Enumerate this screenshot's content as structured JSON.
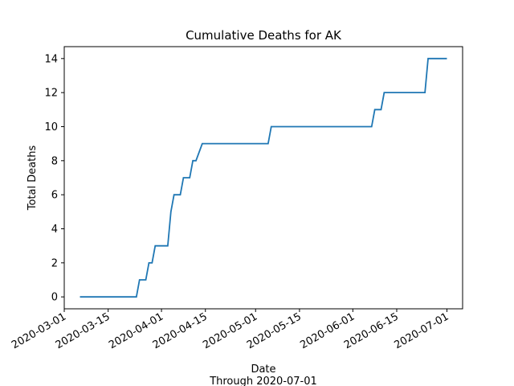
{
  "chart_data": {
    "type": "line",
    "title": "Cumulative Deaths for AK",
    "xlabel": "Date",
    "xlabel_sub": "Through 2020-07-01",
    "ylabel": "Total Deaths",
    "ylim": [
      -0.7,
      14.7
    ],
    "xlim": [
      "2020-03-01",
      "2020-07-06"
    ],
    "yticks": [
      0,
      2,
      4,
      6,
      8,
      10,
      12,
      14
    ],
    "xticks": [
      "2020-03-01",
      "2020-03-15",
      "2020-04-01",
      "2020-04-15",
      "2020-05-01",
      "2020-05-15",
      "2020-06-01",
      "2020-06-15",
      "2020-07-01"
    ],
    "grid": false,
    "line_color": "#1f77b4",
    "series": [
      {
        "points": [
          [
            "2020-03-06",
            0
          ],
          [
            "2020-03-24",
            0
          ],
          [
            "2020-03-25",
            1
          ],
          [
            "2020-03-27",
            1
          ],
          [
            "2020-03-28",
            2
          ],
          [
            "2020-03-29",
            2
          ],
          [
            "2020-03-30",
            3
          ],
          [
            "2020-04-03",
            3
          ],
          [
            "2020-04-04",
            5
          ],
          [
            "2020-04-05",
            6
          ],
          [
            "2020-04-07",
            6
          ],
          [
            "2020-04-08",
            7
          ],
          [
            "2020-04-10",
            7
          ],
          [
            "2020-04-11",
            8
          ],
          [
            "2020-04-12",
            8
          ],
          [
            "2020-04-14",
            9
          ],
          [
            "2020-05-05",
            9
          ],
          [
            "2020-05-06",
            10
          ],
          [
            "2020-06-07",
            10
          ],
          [
            "2020-06-08",
            11
          ],
          [
            "2020-06-10",
            11
          ],
          [
            "2020-06-11",
            12
          ],
          [
            "2020-06-24",
            12
          ],
          [
            "2020-06-25",
            14
          ],
          [
            "2020-07-01",
            14
          ]
        ]
      }
    ]
  }
}
